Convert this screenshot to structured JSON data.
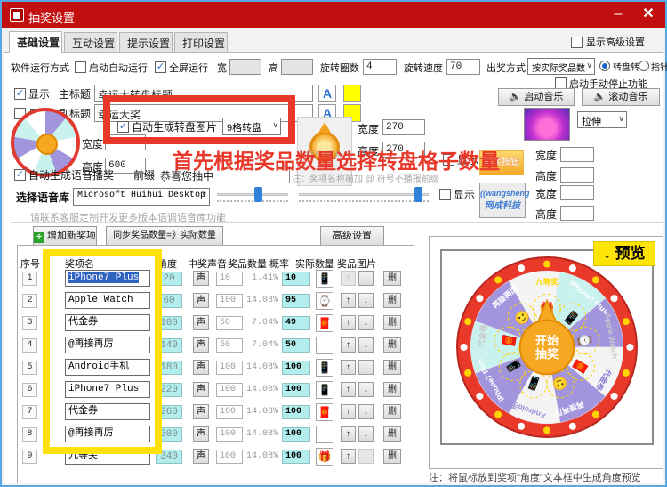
{
  "window": {
    "title": "抽奖设置",
    "minimize": "–",
    "close": "✕"
  },
  "icons": {
    "check": "✓",
    "chevron_down": "∨",
    "speaker": "🔈",
    "plus": "＋",
    "arrow_up": "↑",
    "arrow_down": "↓"
  },
  "colors": {
    "titlebar": "#c20f0f",
    "annotation_red": "#e8382a",
    "highlight_yellow": "#ffe10a",
    "field_cyan": "#b2eeee",
    "accent_blue": "#2d6fd2"
  },
  "tabs": {
    "items": [
      "基础设置",
      "互动设置",
      "提示设置",
      "打印设置"
    ],
    "active_index": 0,
    "advanced_label": "显示高级设置"
  },
  "run": {
    "label": "软件运行方式",
    "auto_run": "启动自动运行",
    "fullscreen": "全屏运行",
    "w_label": "宽",
    "h_label": "高",
    "spin_label": "旋转圈数",
    "spin_value": "4",
    "speed_label": "旋转速度",
    "speed_value": "70",
    "mode_label": "出奖方式",
    "mode_value": "按实际奖品数",
    "radio_wheel": "转盘转",
    "radio_pointer": "指针转",
    "manual_stop": "启动手动停止功能"
  },
  "title_row": {
    "show": "显示",
    "label": "主标题",
    "value": "幸运大转盘标题",
    "font_button": "A"
  },
  "subtitle_row": {
    "show": "显示",
    "label": "副标题",
    "value": "幸运大奖",
    "font_button": "A"
  },
  "music": {
    "start": "启动音乐",
    "scroll": "滚动音乐",
    "stretch": "拉伸"
  },
  "gen": {
    "label": "自动生成转盘图片",
    "option": "9格转盘",
    "w_label": "宽度",
    "w": "600",
    "h_label": "高度",
    "h": "600"
  },
  "pointer_img": {
    "placeholder": "指针图片",
    "w_label": "宽度",
    "w": "270",
    "h_label": "高度",
    "h": "270"
  },
  "button_img": {
    "show": "显示",
    "label": "抽奖按钮",
    "w_label": "宽度",
    "h_label": "高度"
  },
  "logo_img": {
    "show": "显示",
    "line1": "((wangsheng",
    "line2": "网成科技",
    "w_label": "宽度",
    "h_label": "高度"
  },
  "voice": {
    "auto": "自动生成语音播奖",
    "prefix_label": "前缀",
    "prefix": "恭喜您抽中",
    "note": "注：奖项名称前加 @ 符号不播报前缀"
  },
  "voicelib": {
    "label": "选择语音库",
    "value": "Microsoft Huihui Desktop - Ch:",
    "service_note": "请联系客服定制开发更多版本语调语音库功能"
  },
  "annotation": {
    "text": "首先根据奖品数量选择转盘格子数量"
  },
  "toolbar": {
    "add": "增加新奖项",
    "sync": "同步奖品数量=》实际数量",
    "advanced": "高级设置"
  },
  "table": {
    "headers": [
      "序号",
      "奖项名",
      "角度",
      "中奖声音",
      "奖品数量",
      "概率",
      "实际数量",
      "奖品图片"
    ],
    "sound_label": "声",
    "delete_label": "删",
    "rows": [
      {
        "no": "1",
        "name": "iPhone7 Plus",
        "selected": true,
        "angle": "20",
        "qty": "10",
        "prob": "1.41%",
        "actual": "10",
        "icon": "phone-dark",
        "up_enabled": false,
        "down_enabled": true
      },
      {
        "no": "2",
        "name": "Apple Watch",
        "selected": false,
        "angle": "60",
        "qty": "100",
        "prob": "14.08%",
        "actual": "95",
        "icon": "watch",
        "up_enabled": true,
        "down_enabled": true
      },
      {
        "no": "3",
        "name": "代金券",
        "selected": false,
        "angle": "100",
        "qty": "50",
        "prob": "7.04%",
        "actual": "49",
        "icon": "coupon",
        "up_enabled": true,
        "down_enabled": true
      },
      {
        "no": "4",
        "name": "@再接再厉",
        "selected": false,
        "angle": "140",
        "qty": "50",
        "prob": "7.04%",
        "actual": "50",
        "icon": "blank",
        "up_enabled": true,
        "down_enabled": true
      },
      {
        "no": "5",
        "name": "Android手机",
        "selected": false,
        "angle": "180",
        "qty": "100",
        "prob": "14.08%",
        "actual": "100",
        "icon": "phone-blue",
        "up_enabled": true,
        "down_enabled": true
      },
      {
        "no": "6",
        "name": "iPhone7 Plus",
        "selected": false,
        "angle": "220",
        "qty": "100",
        "prob": "14.08%",
        "actual": "100",
        "icon": "phone-dark",
        "up_enabled": true,
        "down_enabled": true
      },
      {
        "no": "7",
        "name": "代金券",
        "selected": false,
        "angle": "260",
        "qty": "100",
        "prob": "14.08%",
        "actual": "100",
        "icon": "coupon",
        "up_enabled": true,
        "down_enabled": true
      },
      {
        "no": "8",
        "name": "@再接再厉",
        "selected": false,
        "angle": "300",
        "qty": "100",
        "prob": "14.08%",
        "actual": "100",
        "icon": "blank",
        "up_enabled": true,
        "down_enabled": true
      },
      {
        "no": "9",
        "name": "九等奖",
        "selected": false,
        "angle": "340",
        "qty": "100",
        "prob": "14.08%",
        "actual": "100",
        "icon": "gift",
        "up_enabled": true,
        "down_enabled": false
      }
    ],
    "icon_glyphs": {
      "phone-dark": "📱",
      "watch": "⌚",
      "coupon": "🧧",
      "blank": "",
      "phone-blue": "📱",
      "gift": "🎁"
    }
  },
  "preview": {
    "label": "↓ 预览",
    "center_text": "开始抽奖",
    "note": "注：将鼠标放到奖项\"角度\"文本框中生成角度预览",
    "rim_color": "#e8392b",
    "dot_colors": [
      "#ffd400",
      "#ffffff"
    ],
    "segments": [
      {
        "label": "九等奖",
        "color": "#c9f1ee",
        "text_color": "#ffd800",
        "glyph": "🎁"
      },
      {
        "label": "iPhone7 Plus",
        "color": "#a395dd",
        "text_color": "#ffffff",
        "glyph": "📱"
      },
      {
        "label": "Apple Watch",
        "color": "#f4f4f4",
        "text_color": "#c9c9c9",
        "glyph": "⌚"
      },
      {
        "label": "代金券",
        "color": "#c9f1ee",
        "text_color": "#8a7ad0",
        "glyph": "🧧"
      },
      {
        "label": "再接再厉",
        "color": "#a395dd",
        "text_color": "#ffffff",
        "glyph": "🙂"
      },
      {
        "label": "Android手机",
        "color": "#f4f4f4",
        "text_color": "#9b8fd8",
        "glyph": "📱"
      },
      {
        "label": "iPhone7 Plus",
        "color": "#a395dd",
        "text_color": "#ffffff",
        "glyph": "📱"
      },
      {
        "label": "代金券",
        "color": "#f4f4f4",
        "text_color": "#c9c9c9",
        "glyph": "🧧"
      },
      {
        "label": "再接再厉",
        "color": "#a395dd",
        "text_color": "#ffffff",
        "glyph": "🙂"
      }
    ]
  }
}
